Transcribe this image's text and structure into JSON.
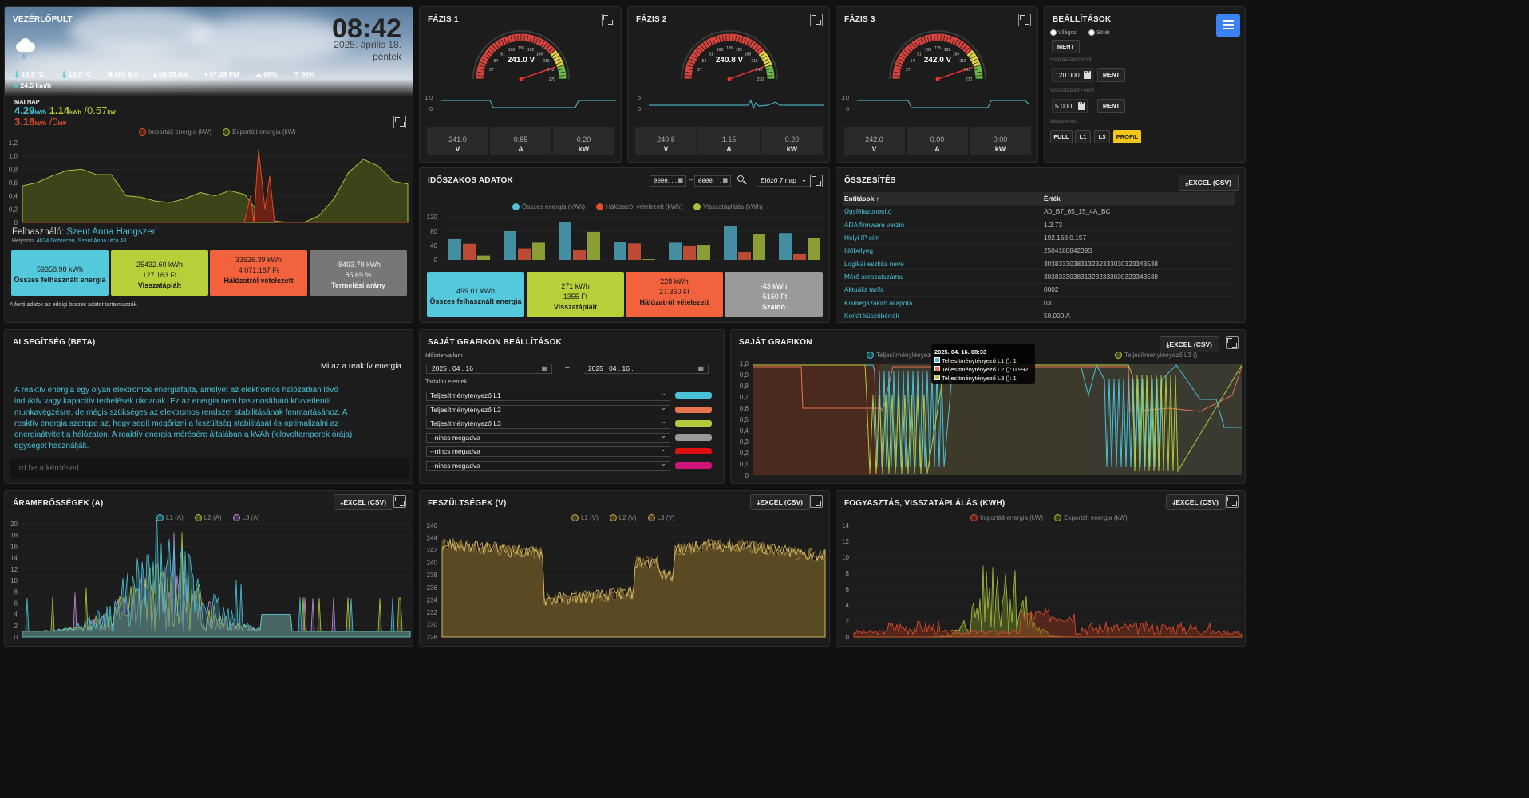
{
  "vezerlopult": {
    "title": "VEZÉRLŐPULT",
    "time": "08:42",
    "date": "2025. április 18.",
    "weekday": "péntek",
    "weather": {
      "temp_max": "15.9 °C",
      "temp_min": "10.5 °C",
      "uv": "UV: 0.4",
      "sunrise": "05:39 AM",
      "sunset": "07:28 PM",
      "humidity": "66%",
      "rain": "96%",
      "wind": "24.5 km/h"
    },
    "mai_nap_label": "MAI NAP",
    "today": {
      "import_value": "4.29",
      "export_value": "1.14",
      "kwh_unit": "kWh",
      "power_import": "/0.57",
      "kw_unit": "kW",
      "consumption": "3.16",
      "power_export": "/0"
    },
    "legend": [
      "Importált energia (kW)",
      "Exportált energia (kW)"
    ],
    "y_ticks": [
      "1,2",
      "1,0",
      "0,8",
      "0,6",
      "0,4",
      "0,2",
      "0"
    ],
    "user_label": "Felhasználó:",
    "user_name": "Szent Anna Hangszer",
    "location_label": "Helyszín:",
    "location": "4024 Debrecen, Szent Anna utca 43.",
    "cards": [
      {
        "l1": "59358.98 kWh",
        "l2": "Összes felhasznált energia",
        "l3": ""
      },
      {
        "l1": "25432.60 kWh",
        "l2": "127.163 Ft",
        "l3": "Visszatáplált"
      },
      {
        "l1": "33926.39 kWh",
        "l2": "4 071.167 Ft",
        "l3": "Hálózatról vételezett"
      },
      {
        "l1": "-8493.79 kWh",
        "l2": "85.69 %",
        "l3": "Termelési arány"
      }
    ],
    "footnote": "A fenti adatok az eddigi összes adatot tartalmazzák.",
    "colors": {
      "import": "#e14d2a",
      "export": "#a8c23a",
      "cyan": "#49c2d8",
      "gray": "#7a7a7a"
    }
  },
  "fazis": [
    {
      "title": "FÁZIS 1",
      "voltage": "241.0 V",
      "v": "241.0",
      "a": "0.85",
      "kw": "0.20",
      "ylo": "0",
      "yhi": "1.0"
    },
    {
      "title": "FÁZIS 2",
      "voltage": "240.8 V",
      "v": "240.8",
      "a": "1.15",
      "kw": "0.20",
      "ylo": "0",
      "yhi": "5"
    },
    {
      "title": "FÁZIS 3",
      "voltage": "242.0 V",
      "v": "242.0",
      "a": "0.00",
      "kw": "0.00",
      "ylo": "0",
      "yhi": "1.0"
    }
  ],
  "units": {
    "v": "V",
    "a": "A",
    "kw": "kW"
  },
  "gauge_ticks": [
    "27",
    "54",
    "81",
    "108",
    "135",
    "162",
    "189",
    "216",
    "243",
    "270"
  ],
  "beallitasok": {
    "title": "BEÁLLÍTÁSOK",
    "theme_light": "Világos",
    "theme_dark": "Sötét",
    "save": "MENT",
    "fogyasztas_label": "Fogyasztás Forint",
    "fogyasztas_value": "120.000",
    "visszatap_label": "Visszatáplált Forint",
    "visszatap_value": "5.000",
    "megjelenes_label": "Megjelenés",
    "view_buttons": [
      "FULL",
      "L1",
      "L3",
      "PROFIL"
    ]
  },
  "idoszakos": {
    "title": "IDŐSZAKOS ADATOK",
    "date_placeholder": "éééé. . .",
    "range_sep": "–",
    "period": "Előző 7 nap",
    "legend": [
      "Összes energia (kWh)",
      "Hálózatról vételezett (kWh)",
      "Visszatáplálás (kWh)"
    ],
    "y_ticks": [
      "120",
      "80",
      "40",
      "0"
    ],
    "cards": [
      {
        "l1": "499.01 kWh",
        "l2": "Összes felhasznált energia",
        "l3": ""
      },
      {
        "l1": "271 kWh",
        "l2": "1355 Ft",
        "l3": "Visszatáplált"
      },
      {
        "l1": "228 kWh",
        "l2": "27.360 Ft",
        "l3": "Hálózatról vételezett"
      },
      {
        "l1": "-43 kWh",
        "l2": "-5160 Ft",
        "l3": "Szaldó"
      }
    ]
  },
  "osszesites": {
    "title": "ÖSSZESÍTÉS",
    "excel": "EXCEL (CSV)",
    "headers": [
      "Entitások ↑",
      "Érték"
    ],
    "rows": [
      [
        "Ügyfélazonosító",
        "A0_B7_65_15_4A_BC"
      ],
      [
        "ADA firmware verzió",
        "1.2.73"
      ],
      [
        "Helyi IP cím",
        "192.168.0.157"
      ],
      [
        "Időbélyeg",
        "250418084239S"
      ],
      [
        "Logikai eszköz neve",
        "3038333038313232333030323343538"
      ],
      [
        "Mérő sorozatszáma",
        "3038333038313232333030323343538"
      ],
      [
        "Aktuális tarifa",
        "0002"
      ],
      [
        "Kismegszakító állapota",
        "03"
      ],
      [
        "Korlát küszöbérték",
        "50.000 A"
      ]
    ]
  },
  "ai": {
    "title": "AI SEGÍTSÉG (BETA)",
    "question": "Mi az a reaktív energia",
    "answer": "A reaktív energia egy olyan elektromos energiafajta, amelyet az elektromos hálózatban lévő induktív vagy kapacitív terhelések okoznak. Ez az energia nem hasznosítható közvetlenül munkavégzésre, de mégis szükséges az elektromos rendszer stabilitásának fenntartásához. A reaktív energia szerepe az, hogy segít megőrizni a feszültség stabilitását és optimalizálni az energiaátvitelt a hálózaton. A reaktív energia mérésére általában a kVAh (kilovoltamperek órája) egységet használják.",
    "placeholder": "Írd be a kérdésed..."
  },
  "sajat_beall": {
    "title": "SAJÁT GRAFIKON BEÁLLÍTÁSOK",
    "interval_label": "Időintervallum",
    "date_from": "2025 . 04 . 16 .",
    "date_to": "2025 . 04 . 16 .",
    "sep": "–",
    "elements_label": "Tartalmi elemek",
    "selects": [
      {
        "value": "Teljesítménytényező L1",
        "color": "#49c2d8"
      },
      {
        "value": "Teljesítménytényező L2",
        "color": "#e8734f"
      },
      {
        "value": "Teljesítménytényező L3",
        "color": "#b5c93f"
      },
      {
        "value": "--nincs megadva",
        "color": "#9a9a9a"
      },
      {
        "value": "--nincs megadva",
        "color": "#e01010"
      },
      {
        "value": "--nincs megadva",
        "color": "#d0157a"
      }
    ]
  },
  "sajat_graf": {
    "title": "SAJÁT GRAFIKON",
    "excel": "EXCEL (CSV)",
    "legend": [
      "Teljesítménytényező L",
      "Teljesítménytényező L3 ()"
    ],
    "tooltip_title": "2025. 04. 16. 08:33",
    "tooltip_rows": [
      "Teljesítménytényező L1 (): 1",
      "Teljesítménytényező L2 (): 0.992",
      "Teljesítménytényező L3 (): 1"
    ],
    "y_ticks": [
      "1,0",
      "0,9",
      "0,8",
      "0,7",
      "0,6",
      "0,5",
      "0,4",
      "0,3",
      "0,2",
      "0,1",
      "0"
    ]
  },
  "aram": {
    "title": "ÁRAMERŐSSÉGEK (A)",
    "excel": "EXCEL (CSV)",
    "legend": [
      "L1 (A)",
      "L2 (A)",
      "L3 (A)"
    ],
    "y_ticks": [
      "20",
      "18",
      "16",
      "14",
      "12",
      "10",
      "8",
      "6",
      "4",
      "2",
      "0"
    ]
  },
  "fesz": {
    "title": "FESZÜLTSÉGEK (V)",
    "excel": "EXCEL (CSV)",
    "legend": [
      "L1 (V)",
      "L2 (V)",
      "L3 (V)"
    ],
    "y_ticks": [
      "246",
      "244",
      "242",
      "240",
      "238",
      "236",
      "234",
      "232",
      "230",
      "228"
    ]
  },
  "fogy": {
    "title": "FOGYASZTÁS, VISSZATÁPLÁLÁS (KWH)",
    "excel": "EXCEL (CSV)",
    "legend": [
      "Importált energia (kW)",
      "Exportált energia (kW)"
    ],
    "y_ticks": [
      "14",
      "12",
      "10",
      "8",
      "6",
      "4",
      "2",
      "0"
    ]
  }
}
